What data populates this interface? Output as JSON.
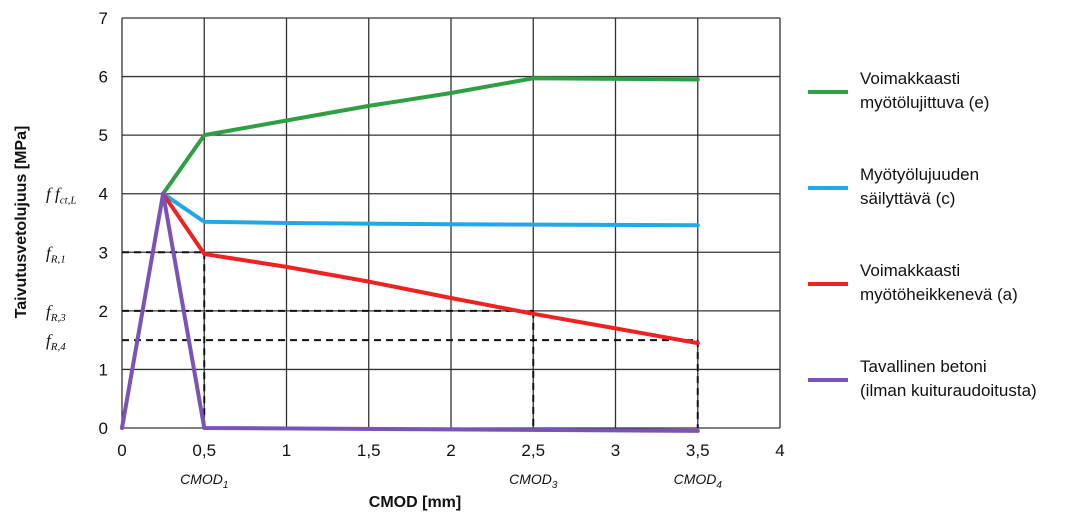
{
  "chart_data": {
    "type": "line",
    "ylabel": "Taivutusvetolujuus [MPa]",
    "xlabel": "CMOD [mm]",
    "xlim": [
      0,
      4
    ],
    "ylim": [
      0,
      7
    ],
    "x_ticks": [
      {
        "v": 0,
        "label": "0"
      },
      {
        "v": 0.5,
        "label": "0,5"
      },
      {
        "v": 1,
        "label": "1"
      },
      {
        "v": 1.5,
        "label": "1,5"
      },
      {
        "v": 2,
        "label": "2"
      },
      {
        "v": 2.5,
        "label": "2,5"
      },
      {
        "v": 3,
        "label": "3"
      },
      {
        "v": 3.5,
        "label": "3,5"
      },
      {
        "v": 4,
        "label": "4"
      }
    ],
    "y_ticks": [
      {
        "v": 0,
        "label": "0"
      },
      {
        "v": 1,
        "label": "1"
      },
      {
        "v": 2,
        "label": "2"
      },
      {
        "v": 3,
        "label": "3"
      },
      {
        "v": 4,
        "label": "4"
      },
      {
        "v": 5,
        "label": "5"
      },
      {
        "v": 6,
        "label": "6"
      },
      {
        "v": 7,
        "label": "7"
      }
    ],
    "grid": true,
    "legend_position": "right",
    "series": [
      {
        "name_lines": [
          "Voimakkaasti",
          "myötölujittuva (e)"
        ],
        "color": "#2ea043",
        "points": [
          [
            0.25,
            4.0
          ],
          [
            0.5,
            5.0
          ],
          [
            1.0,
            5.25
          ],
          [
            1.5,
            5.5
          ],
          [
            2.0,
            5.72
          ],
          [
            2.5,
            5.97
          ],
          [
            3.5,
            5.95
          ]
        ]
      },
      {
        "name_lines": [
          "Myötyölujuuden",
          "säilyttävä (c)"
        ],
        "color": "#22a8e6",
        "points": [
          [
            0.25,
            4.0
          ],
          [
            0.5,
            3.52
          ],
          [
            1.0,
            3.5
          ],
          [
            2.0,
            3.48
          ],
          [
            3.5,
            3.46
          ]
        ]
      },
      {
        "name_lines": [
          "Voimakkaasti",
          "myötöheikkenevä (a)"
        ],
        "color": "#ee2222",
        "points": [
          [
            0.25,
            4.0
          ],
          [
            0.5,
            2.97
          ],
          [
            1.0,
            2.75
          ],
          [
            1.5,
            2.5
          ],
          [
            2.0,
            2.22
          ],
          [
            2.5,
            1.95
          ],
          [
            3.0,
            1.7
          ],
          [
            3.5,
            1.45
          ]
        ]
      },
      {
        "name_lines": [
          "Tavallinen betoni",
          "(ilman kuituraudoitusta)"
        ],
        "color": "#7a52b8",
        "points": [
          [
            0.0,
            0.0
          ],
          [
            0.25,
            4.0
          ],
          [
            0.5,
            0.0
          ],
          [
            3.5,
            -0.05
          ]
        ]
      }
    ],
    "reference_lines": [
      {
        "y": 3.0,
        "x_end": 0.5
      },
      {
        "y": 2.0,
        "x_end": 2.5
      },
      {
        "y": 1.5,
        "x_end": 3.5
      }
    ],
    "y_annotations": [
      {
        "main": "f f",
        "sub": "ct,L",
        "y": 4.0
      },
      {
        "main": "f",
        "sub": "R,1",
        "y": 3.0
      },
      {
        "main": "f",
        "sub": "R,3",
        "y": 2.0
      },
      {
        "main": "f",
        "sub": "R,4",
        "y": 1.5
      }
    ],
    "x_annotations": [
      {
        "main": "CMOD",
        "sub": "1",
        "x": 0.5
      },
      {
        "main": "CMOD",
        "sub": "3",
        "x": 2.5
      },
      {
        "main": "CMOD",
        "sub": "4",
        "x": 3.5
      }
    ]
  }
}
